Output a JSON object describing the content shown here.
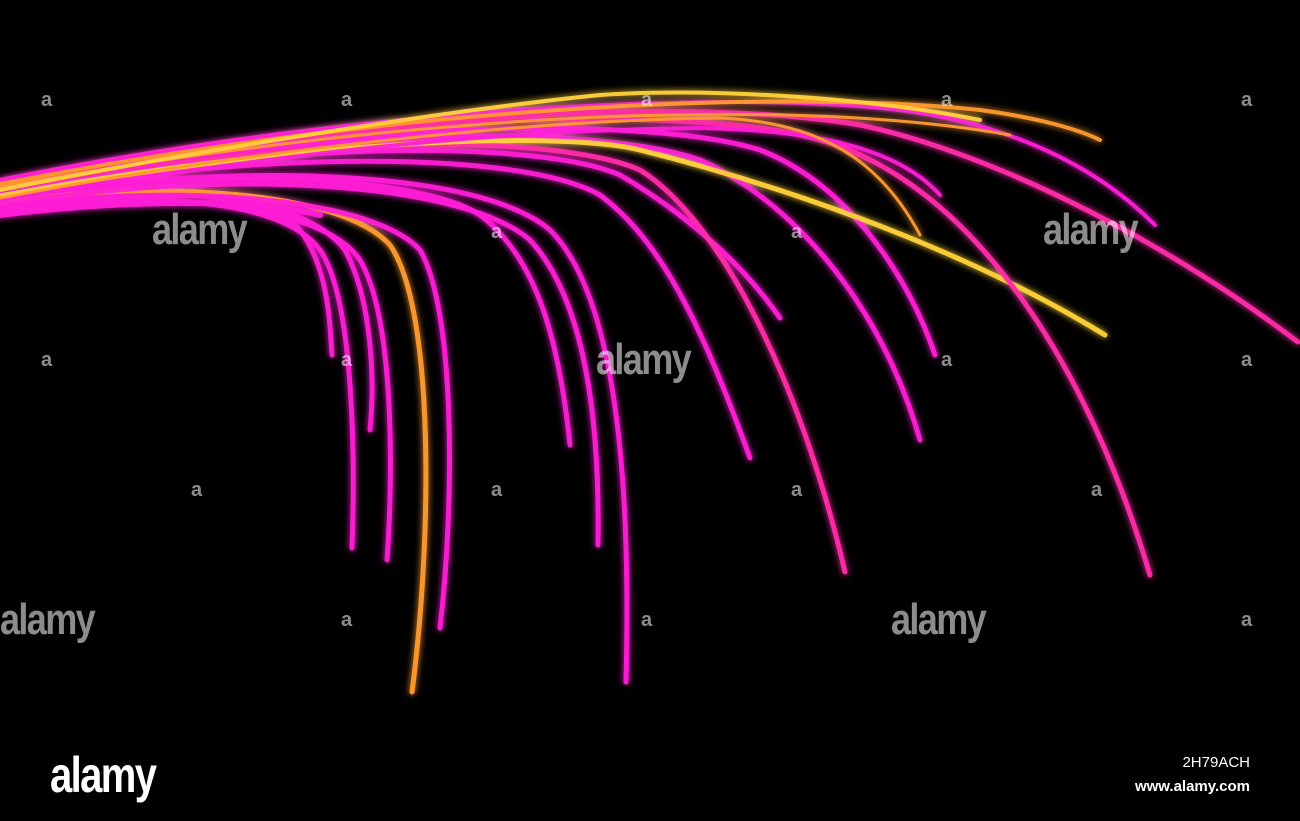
{
  "colors": {
    "background": "#000000",
    "magenta": "#ff1fd6",
    "pink": "#ff2aa8",
    "orange": "#ff9a2e",
    "yellow": "#ffd23a"
  },
  "watermark": {
    "word": "alamy",
    "letter": "a"
  },
  "footer": {
    "logo": "alamy",
    "image_id": "2H79ACH",
    "site": "www.alamy.com"
  }
}
